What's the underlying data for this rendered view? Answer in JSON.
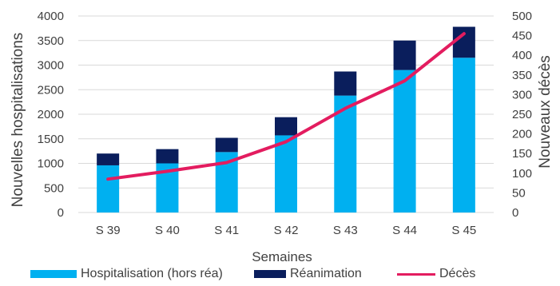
{
  "chart_data": {
    "type": "bar",
    "categories": [
      "S 39",
      "S 40",
      "S 41",
      "S 42",
      "S 43",
      "S 44",
      "S 45"
    ],
    "series": [
      {
        "name": "Hospitalisation (hors réa)",
        "type": "stacked-bar",
        "axis": "left",
        "color": "#00b0f0",
        "values": [
          960,
          1000,
          1230,
          1570,
          2380,
          2900,
          3150
        ]
      },
      {
        "name": "Réanimation",
        "type": "stacked-bar",
        "axis": "left",
        "color": "#0a1e5c",
        "values": [
          240,
          290,
          290,
          370,
          490,
          600,
          630
        ]
      },
      {
        "name": "Décès",
        "type": "line",
        "axis": "right",
        "color": "#e31c5f",
        "values": [
          85,
          105,
          127,
          180,
          265,
          335,
          455
        ]
      }
    ],
    "xlabel": "Semaines",
    "ylabel": "Nouvelles hospitalisations",
    "y2label": "Nouveaux décès",
    "ylim": [
      0,
      4000
    ],
    "y2lim": [
      0,
      500
    ],
    "yticks": [
      "0",
      "500",
      "1000",
      "1500",
      "2000",
      "2500",
      "3000",
      "3500",
      "4000"
    ],
    "y2ticks": [
      "0",
      "50",
      "100",
      "150",
      "200",
      "250",
      "300",
      "350",
      "400",
      "450",
      "500"
    ],
    "grid": true,
    "legend": "bottom"
  }
}
